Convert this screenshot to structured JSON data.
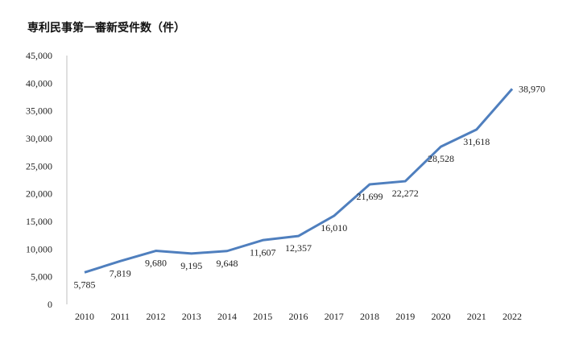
{
  "chart_data": {
    "type": "line",
    "title": "専利民事第一審新受件数（件）",
    "x": [
      "2010",
      "2011",
      "2012",
      "2013",
      "2014",
      "2015",
      "2016",
      "2017",
      "2018",
      "2019",
      "2020",
      "2021",
      "2022"
    ],
    "series": [
      {
        "values": [
          5785,
          7819,
          9680,
          9195,
          9648,
          11607,
          12357,
          16010,
          21699,
          22272,
          28528,
          31618,
          38970
        ],
        "labels": [
          "5,785",
          "7,819",
          "9,680",
          "9,195",
          "9,648",
          "11,607",
          "12,357",
          "16,010",
          "21,699",
          "22,272",
          "28,528",
          "31,618",
          "38,970"
        ]
      }
    ],
    "ylim": [
      0,
      45000
    ],
    "yticks": [
      "0",
      "5,000",
      "10,000",
      "15,000",
      "20,000",
      "25,000",
      "30,000",
      "35,000",
      "40,000",
      "45,000"
    ],
    "line_color": "#4f7fbe",
    "grid": false,
    "legend": "none"
  }
}
